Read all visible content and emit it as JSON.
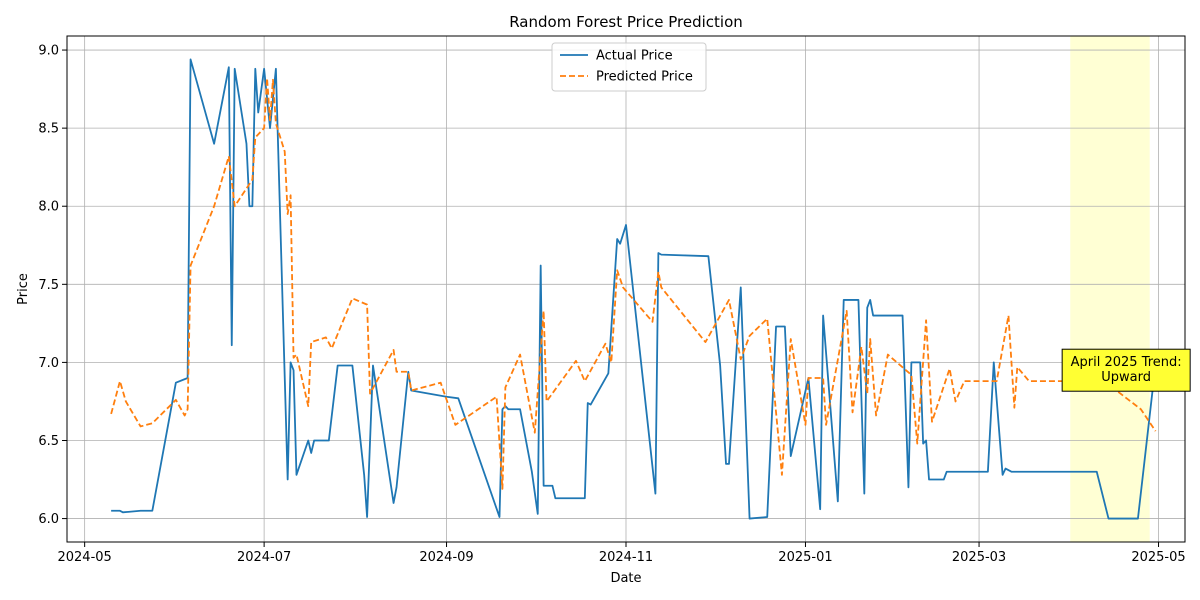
{
  "chart_data": {
    "type": "line",
    "title": "Random Forest Price Prediction",
    "xlabel": "Date",
    "ylabel": "Price",
    "xlim": [
      "2024-04-25",
      "2025-05-10"
    ],
    "ylim": [
      5.85,
      9.09
    ],
    "x_ticks": [
      "2024-05-01",
      "2024-07-01",
      "2024-09-01",
      "2024-11-01",
      "2025-01-01",
      "2025-03-01",
      "2025-05-01"
    ],
    "x_tick_labels": [
      "2024-05",
      "2024-07",
      "2024-09",
      "2024-11",
      "2025-01",
      "2025-03",
      "2025-05"
    ],
    "y_ticks": [
      6.0,
      6.5,
      7.0,
      7.5,
      8.0,
      8.5,
      9.0
    ],
    "y_tick_labels": [
      "6.0",
      "6.5",
      "7.0",
      "7.5",
      "8.0",
      "8.5",
      "9.0"
    ],
    "grid": true,
    "legend_position": "top-center",
    "highlight_span": {
      "start": "2025-04-01",
      "end": "2025-04-28",
      "color": "#ffffcc"
    },
    "annotation": {
      "lines": [
        "April 2025 Trend:",
        "Upward"
      ],
      "x": "2025-04-20",
      "y": 6.95,
      "bg": "#ffff33"
    },
    "series": [
      {
        "name": "Actual Price",
        "color": "#1f77b4",
        "style": "solid",
        "points": [
          [
            "2024-05-10",
            6.05
          ],
          [
            "2024-05-13",
            6.05
          ],
          [
            "2024-05-14",
            6.04
          ],
          [
            "2024-05-20",
            6.05
          ],
          [
            "2024-05-24",
            6.05
          ],
          [
            "2024-06-01",
            6.87
          ],
          [
            "2024-06-05",
            6.9
          ],
          [
            "2024-06-06",
            8.94
          ],
          [
            "2024-06-14",
            8.4
          ],
          [
            "2024-06-19",
            8.89
          ],
          [
            "2024-06-20",
            7.11
          ],
          [
            "2024-06-21",
            8.88
          ],
          [
            "2024-06-25",
            8.4
          ],
          [
            "2024-06-26",
            8.0
          ],
          [
            "2024-06-27",
            8.0
          ],
          [
            "2024-06-28",
            8.88
          ],
          [
            "2024-06-29",
            8.6
          ],
          [
            "2024-07-01",
            8.88
          ],
          [
            "2024-07-03",
            8.5
          ],
          [
            "2024-07-05",
            8.88
          ],
          [
            "2024-07-09",
            6.25
          ],
          [
            "2024-07-10",
            7.0
          ],
          [
            "2024-07-11",
            6.95
          ],
          [
            "2024-07-12",
            6.28
          ],
          [
            "2024-07-16",
            6.5
          ],
          [
            "2024-07-17",
            6.42
          ],
          [
            "2024-07-18",
            6.5
          ],
          [
            "2024-07-23",
            6.5
          ],
          [
            "2024-07-26",
            6.98
          ],
          [
            "2024-07-31",
            6.98
          ],
          [
            "2024-08-04",
            6.28
          ],
          [
            "2024-08-05",
            6.01
          ],
          [
            "2024-08-07",
            6.98
          ],
          [
            "2024-08-14",
            6.1
          ],
          [
            "2024-08-15",
            6.2
          ],
          [
            "2024-08-19",
            6.94
          ],
          [
            "2024-08-20",
            6.82
          ],
          [
            "2024-09-01",
            6.78
          ],
          [
            "2024-09-05",
            6.77
          ],
          [
            "2024-09-19",
            6.01
          ],
          [
            "2024-09-20",
            6.7
          ],
          [
            "2024-09-21",
            6.72
          ],
          [
            "2024-09-22",
            6.7
          ],
          [
            "2024-09-26",
            6.7
          ],
          [
            "2024-09-30",
            6.3
          ],
          [
            "2024-10-02",
            6.03
          ],
          [
            "2024-10-03",
            7.62
          ],
          [
            "2024-10-04",
            6.21
          ],
          [
            "2024-10-07",
            6.21
          ],
          [
            "2024-10-08",
            6.13
          ],
          [
            "2024-10-18",
            6.13
          ],
          [
            "2024-10-19",
            6.74
          ],
          [
            "2024-10-20",
            6.73
          ],
          [
            "2024-10-26",
            6.93
          ],
          [
            "2024-10-29",
            7.79
          ],
          [
            "2024-10-30",
            7.76
          ],
          [
            "2024-11-01",
            7.88
          ],
          [
            "2024-11-11",
            6.16
          ],
          [
            "2024-11-12",
            7.7
          ],
          [
            "2024-11-13",
            7.69
          ],
          [
            "2024-11-29",
            7.68
          ],
          [
            "2024-12-03",
            6.98
          ],
          [
            "2024-12-05",
            6.35
          ],
          [
            "2024-12-06",
            6.35
          ],
          [
            "2024-12-10",
            7.48
          ],
          [
            "2024-12-13",
            6.0
          ],
          [
            "2024-12-19",
            6.01
          ],
          [
            "2024-12-22",
            7.23
          ],
          [
            "2024-12-25",
            7.23
          ],
          [
            "2024-12-27",
            6.4
          ],
          [
            "2025-01-02",
            6.9
          ],
          [
            "2025-01-06",
            6.06
          ],
          [
            "2025-01-07",
            7.3
          ],
          [
            "2025-01-12",
            6.11
          ],
          [
            "2025-01-14",
            7.4
          ],
          [
            "2025-01-19",
            7.4
          ],
          [
            "2025-01-21",
            6.16
          ],
          [
            "2025-01-22",
            7.35
          ],
          [
            "2025-01-23",
            7.4
          ],
          [
            "2025-01-24",
            7.3
          ],
          [
            "2025-02-03",
            7.3
          ],
          [
            "2025-02-05",
            6.2
          ],
          [
            "2025-02-06",
            7.0
          ],
          [
            "2025-02-09",
            7.0
          ],
          [
            "2025-02-10",
            6.48
          ],
          [
            "2025-02-11",
            6.5
          ],
          [
            "2025-02-12",
            6.25
          ],
          [
            "2025-02-17",
            6.25
          ],
          [
            "2025-02-18",
            6.3
          ],
          [
            "2025-03-04",
            6.3
          ],
          [
            "2025-03-06",
            7.0
          ],
          [
            "2025-03-09",
            6.28
          ],
          [
            "2025-03-10",
            6.32
          ],
          [
            "2025-03-12",
            6.3
          ],
          [
            "2025-04-10",
            6.3
          ],
          [
            "2025-04-14",
            6.0
          ],
          [
            "2025-04-24",
            6.0
          ],
          [
            "2025-04-30",
            6.99
          ]
        ]
      },
      {
        "name": "Predicted Price",
        "color": "#ff7f0e",
        "style": "dashed",
        "points": [
          [
            "2024-05-10",
            6.67
          ],
          [
            "2024-05-13",
            6.88
          ],
          [
            "2024-05-15",
            6.75
          ],
          [
            "2024-05-20",
            6.59
          ],
          [
            "2024-05-24",
            6.61
          ],
          [
            "2024-06-01",
            6.76
          ],
          [
            "2024-06-04",
            6.66
          ],
          [
            "2024-06-05",
            6.7
          ],
          [
            "2024-06-06",
            7.62
          ],
          [
            "2024-06-14",
            8.0
          ],
          [
            "2024-06-19",
            8.32
          ],
          [
            "2024-06-21",
            8.0
          ],
          [
            "2024-06-27",
            8.17
          ],
          [
            "2024-06-28",
            8.44
          ],
          [
            "2024-07-01",
            8.5
          ],
          [
            "2024-07-02",
            8.82
          ],
          [
            "2024-07-03",
            8.55
          ],
          [
            "2024-07-04",
            8.81
          ],
          [
            "2024-07-05",
            8.53
          ],
          [
            "2024-07-08",
            8.35
          ],
          [
            "2024-07-09",
            7.95
          ],
          [
            "2024-07-10",
            8.07
          ],
          [
            "2024-07-11",
            7.03
          ],
          [
            "2024-07-12",
            7.05
          ],
          [
            "2024-07-16",
            6.72
          ],
          [
            "2024-07-17",
            7.13
          ],
          [
            "2024-07-22",
            7.16
          ],
          [
            "2024-07-24",
            7.09
          ],
          [
            "2024-07-31",
            7.41
          ],
          [
            "2024-08-05",
            7.37
          ],
          [
            "2024-08-06",
            6.8
          ],
          [
            "2024-08-14",
            7.08
          ],
          [
            "2024-08-15",
            6.94
          ],
          [
            "2024-08-19",
            6.94
          ],
          [
            "2024-08-20",
            6.82
          ],
          [
            "2024-08-30",
            6.87
          ],
          [
            "2024-09-04",
            6.6
          ],
          [
            "2024-09-18",
            6.78
          ],
          [
            "2024-09-20",
            6.19
          ],
          [
            "2024-09-21",
            6.84
          ],
          [
            "2024-09-26",
            7.05
          ],
          [
            "2024-10-01",
            6.55
          ],
          [
            "2024-10-04",
            7.33
          ],
          [
            "2024-10-05",
            6.75
          ],
          [
            "2024-10-15",
            7.01
          ],
          [
            "2024-10-18",
            6.88
          ],
          [
            "2024-10-25",
            7.12
          ],
          [
            "2024-10-27",
            7.0
          ],
          [
            "2024-10-29",
            7.59
          ],
          [
            "2024-10-31",
            7.48
          ],
          [
            "2024-11-10",
            7.26
          ],
          [
            "2024-11-12",
            7.58
          ],
          [
            "2024-11-13",
            7.48
          ],
          [
            "2024-11-28",
            7.13
          ],
          [
            "2024-12-06",
            7.4
          ],
          [
            "2024-12-10",
            7.02
          ],
          [
            "2024-12-13",
            7.17
          ],
          [
            "2024-12-19",
            7.28
          ],
          [
            "2024-12-24",
            6.28
          ],
          [
            "2024-12-27",
            7.15
          ],
          [
            "2025-01-01",
            6.6
          ],
          [
            "2025-01-02",
            6.9
          ],
          [
            "2025-01-07",
            6.9
          ],
          [
            "2025-01-08",
            6.6
          ],
          [
            "2025-01-15",
            7.33
          ],
          [
            "2025-01-17",
            6.68
          ],
          [
            "2025-01-20",
            7.1
          ],
          [
            "2025-01-22",
            6.8
          ],
          [
            "2025-01-23",
            7.15
          ],
          [
            "2025-01-25",
            6.66
          ],
          [
            "2025-01-29",
            7.05
          ],
          [
            "2025-02-06",
            6.92
          ],
          [
            "2025-02-08",
            6.48
          ],
          [
            "2025-02-11",
            7.27
          ],
          [
            "2025-02-13",
            6.62
          ],
          [
            "2025-02-19",
            6.96
          ],
          [
            "2025-02-21",
            6.75
          ],
          [
            "2025-02-24",
            6.88
          ],
          [
            "2025-03-07",
            6.88
          ],
          [
            "2025-03-11",
            7.3
          ],
          [
            "2025-03-13",
            6.71
          ],
          [
            "2025-03-14",
            6.97
          ],
          [
            "2025-03-18",
            6.88
          ],
          [
            "2025-04-10",
            6.88
          ],
          [
            "2025-04-16",
            6.83
          ],
          [
            "2025-04-25",
            6.7
          ],
          [
            "2025-04-30",
            6.56
          ]
        ]
      }
    ]
  }
}
